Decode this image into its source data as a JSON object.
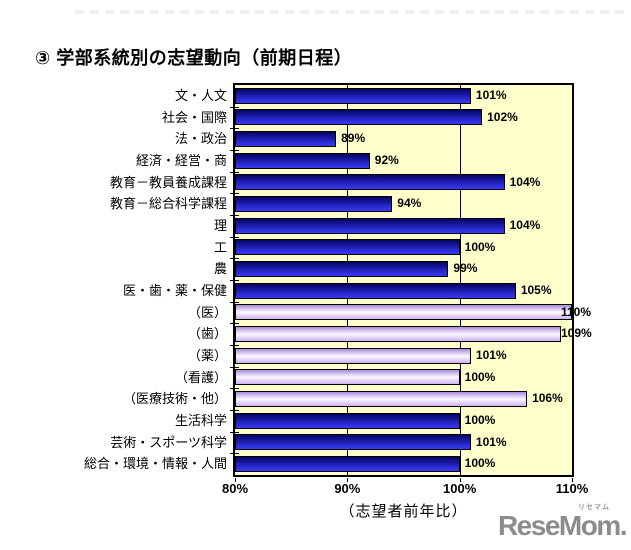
{
  "page": {
    "title": "③ 学部系統別の志望動向（前期日程）"
  },
  "chart_data": {
    "type": "bar",
    "orientation": "horizontal",
    "title": "③ 学部系統別の志望動向（前期日程）",
    "xlabel": "（志望者前年比）",
    "xlim": [
      80,
      110
    ],
    "grid": true,
    "gridlines_at": [
      90,
      100
    ],
    "xticks": [
      {
        "value": 80,
        "label": "80%"
      },
      {
        "value": 90,
        "label": "90%"
      },
      {
        "value": 100,
        "label": "100%"
      },
      {
        "value": 110,
        "label": "110%"
      }
    ],
    "plot_background": "#FFFFCC",
    "categories": [
      "文・人文",
      "社会・国際",
      "法・政治",
      "経済・経営・商",
      "教育－教員養成課程",
      "教育－総合科学課程",
      "理",
      "工",
      "農",
      "医・歯・薬・保健",
      "（医）",
      "（歯）",
      "（薬）",
      "（看護）",
      "（医療技術・他）",
      "生活科学",
      "芸術・スポーツ科学",
      "総合・環境・情報・人間"
    ],
    "values": [
      101,
      102,
      89,
      92,
      104,
      94,
      104,
      100,
      99,
      105,
      110,
      109,
      101,
      100,
      106,
      100,
      101,
      100
    ],
    "value_labels": [
      "101%",
      "102%",
      "89%",
      "92%",
      "104%",
      "94%",
      "104%",
      "100%",
      "99%",
      "105%",
      "110%",
      "109%",
      "101%",
      "100%",
      "106%",
      "100%",
      "101%",
      "100%"
    ],
    "bar_styles": [
      "dark",
      "dark",
      "dark",
      "dark",
      "dark",
      "dark",
      "dark",
      "dark",
      "dark",
      "dark",
      "light",
      "light",
      "light",
      "light",
      "light",
      "dark",
      "dark",
      "dark"
    ],
    "colors": {
      "dark_bar": "#2D2DD8",
      "light_bar": "#D9C4F2",
      "plot_bg": "#FFFFCC",
      "axis": "#000000"
    }
  },
  "watermark": {
    "text": "ReseMom.",
    "ruby": "リセマム"
  }
}
